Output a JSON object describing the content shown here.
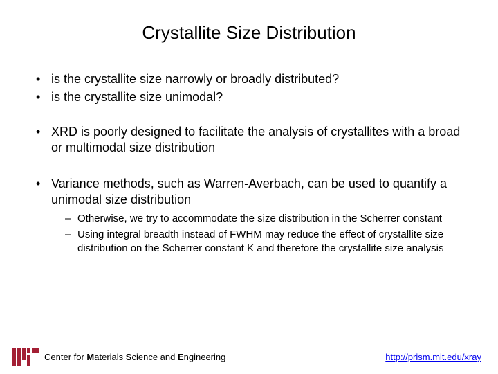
{
  "title": "Crystallite Size Distribution",
  "bullets": {
    "b1": "is the crystallite size narrowly or broadly distributed?",
    "b2": "is the crystallite size unimodal?",
    "b3": "XRD is poorly designed to facilitate the analysis of crystallites with a broad or multimodal size distribution",
    "b4": "Variance methods, such as Warren-Averbach, can be used to quantify a unimodal size distribution",
    "sub1": "Otherwise, we try to accommodate the size distribution in the Scherrer constant",
    "sub2": "Using integral breadth instead of FWHM may reduce the effect of crystallite size distribution on the Scherrer constant K and therefore the crystallite size analysis"
  },
  "footer": {
    "center_prefix": "Center for ",
    "center_bold": "M",
    "center_mid": "aterials ",
    "center_bold2": "S",
    "center_mid2": "cience and ",
    "center_bold3": "E",
    "center_end": "ngineering",
    "link": "http://prism.mit.edu/xray"
  }
}
